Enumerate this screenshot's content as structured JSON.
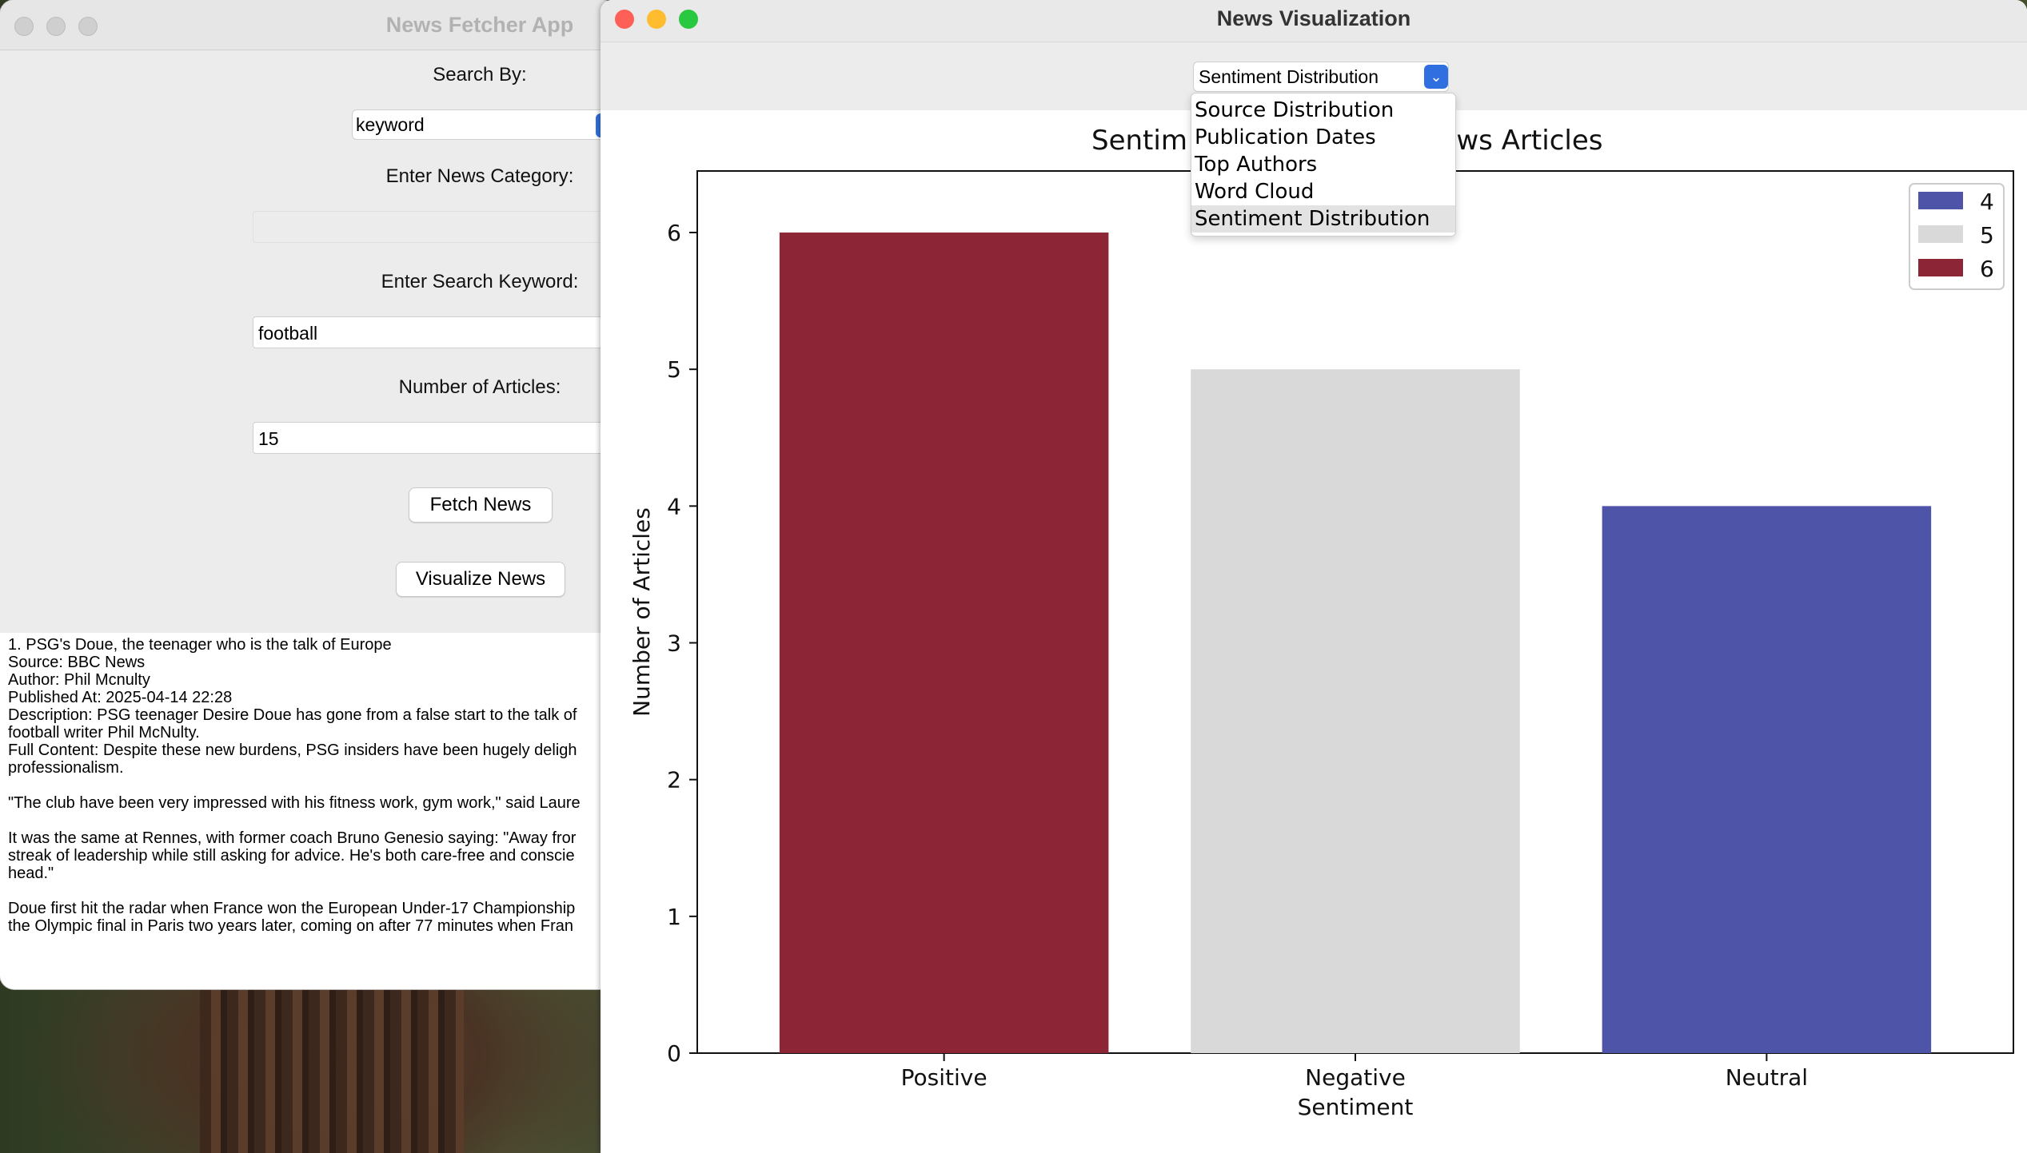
{
  "fetcher": {
    "title": "News Fetcher App",
    "search_by_label": "Search By:",
    "search_by_value": "keyword",
    "category_label": "Enter News Category:",
    "category_value": "",
    "keyword_label": "Enter Search Keyword:",
    "keyword_value": "football",
    "count_label": "Number of Articles:",
    "count_value": "15",
    "fetch_button": "Fetch News",
    "visualize_button": "Visualize News",
    "results": [
      "1. PSG's Doue, the teenager who is the talk of Europe",
      "Source: BBC News",
      "Author: Phil Mcnulty",
      "Published At: 2025-04-14 22:28",
      "Description: PSG teenager Desire Doue has gone from a false start to the talk of",
      "football writer Phil McNulty.",
      "Full Content: Despite these new burdens, PSG insiders have been hugely deligh",
      "professionalism.",
      "",
      "\"The club have been very impressed with his fitness work, gym work,\" said Laure",
      "",
      "It was the same at Rennes, with former coach Bruno Genesio saying: \"Away fror",
      "streak of leadership while still asking for advice. He's both care-free and conscie",
      "head.\"",
      "",
      "Doue first hit the radar when France won the European Under-17 Championship",
      "the Olympic final in Paris two years later, coming on after 77 minutes when Fran"
    ]
  },
  "viz": {
    "title": "News Visualization",
    "selected_option": "Sentiment Distribution",
    "options": [
      "Source Distribution",
      "Publication Dates",
      "Top Authors",
      "Word Cloud",
      "Sentiment Distribution"
    ],
    "chart_title_left": "Sentim",
    "chart_title_right": "lews Articles"
  },
  "chart_data": {
    "type": "bar",
    "categories": [
      "Positive",
      "Negative",
      "Neutral"
    ],
    "values": [
      6,
      5,
      4
    ],
    "colors": [
      "#8c2535",
      "#d9d9d9",
      "#4e55a8"
    ],
    "xlabel": "Sentiment",
    "ylabel": "Number of Articles",
    "ylim": [
      0,
      6.45
    ],
    "yticks": [
      0,
      1,
      2,
      3,
      4,
      5,
      6
    ],
    "legend": [
      {
        "label": "4",
        "color": "#4e55a8"
      },
      {
        "label": "5",
        "color": "#d9d9d9"
      },
      {
        "label": "6",
        "color": "#8c2535"
      }
    ],
    "legend_position": "top-right"
  }
}
